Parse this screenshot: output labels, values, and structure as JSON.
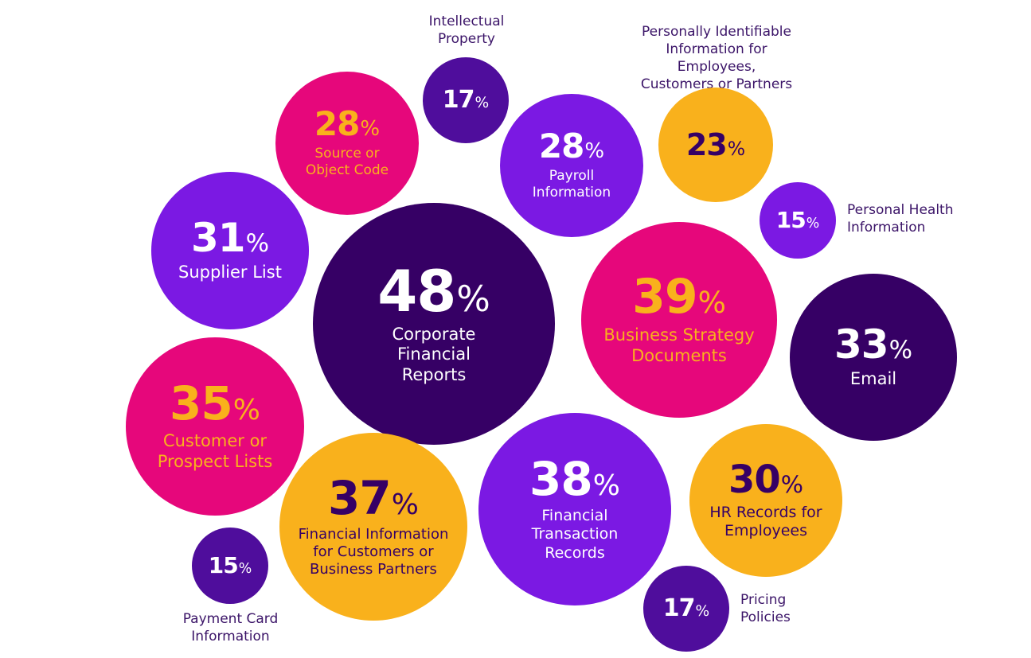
{
  "chart_data": {
    "type": "bubble",
    "unit": "%",
    "colors": {
      "dark_purple": "#360065",
      "indigo": "#4f0d9c",
      "violet": "#7b19e3",
      "magenta": "#e6077b",
      "amber": "#f9b11c",
      "label_dark": "#3b1468",
      "white": "#ffffff"
    },
    "items": [
      {
        "value": 48,
        "label": "Corporate\nFinancial\nReports",
        "fill": "#360065",
        "text_color": "#ffffff",
        "label_color": "#ffffff"
      },
      {
        "value": 39,
        "label": "Business Strategy\nDocuments",
        "fill": "#e6077b",
        "text_color": "#f9b11c",
        "label_color": "#f9b11c"
      },
      {
        "value": 38,
        "label": "Financial\nTransaction\nRecords",
        "fill": "#7b19e3",
        "text_color": "#ffffff",
        "label_color": "#ffffff"
      },
      {
        "value": 37,
        "label": "Financial Information\nfor Customers or\nBusiness Partners",
        "fill": "#f9b11c",
        "text_color": "#360065",
        "label_color": "#360065"
      },
      {
        "value": 35,
        "label": "Customer or\nProspect Lists",
        "fill": "#e6077b",
        "text_color": "#f9b11c",
        "label_color": "#f9b11c"
      },
      {
        "value": 33,
        "label": "Email",
        "fill": "#360065",
        "text_color": "#ffffff",
        "label_color": "#ffffff"
      },
      {
        "value": 31,
        "label": "Supplier List",
        "fill": "#7b19e3",
        "text_color": "#ffffff",
        "label_color": "#ffffff"
      },
      {
        "value": 30,
        "label": "HR Records for\nEmployees",
        "fill": "#f9b11c",
        "text_color": "#360065",
        "label_color": "#360065"
      },
      {
        "value": 28,
        "label": "Source or\nObject Code",
        "fill": "#e6077b",
        "text_color": "#f9b11c",
        "label_color": "#f9b11c"
      },
      {
        "value": 28,
        "label": "Payroll\nInformation",
        "fill": "#7b19e3",
        "text_color": "#ffffff",
        "label_color": "#ffffff"
      },
      {
        "value": 23,
        "label": "Personally Identifiable\nInformation for Employees,\nCustomers or Partners",
        "fill": "#f9b11c",
        "text_color": "#360065",
        "label_color": "#3b1468"
      },
      {
        "value": 17,
        "label": "Intellectual\nProperty",
        "fill": "#4f0d9c",
        "text_color": "#ffffff",
        "label_color": "#3b1468"
      },
      {
        "value": 17,
        "label": "Pricing\nPolicies",
        "fill": "#4f0d9c",
        "text_color": "#ffffff",
        "label_color": "#3b1468"
      },
      {
        "value": 15,
        "label": "Personal Health\nInformation",
        "fill": "#7b19e3",
        "text_color": "#ffffff",
        "label_color": "#3b1468"
      },
      {
        "value": 15,
        "label": "Payment Card\nInformation",
        "fill": "#4f0d9c",
        "text_color": "#ffffff",
        "label_color": "#3b1468"
      }
    ]
  }
}
